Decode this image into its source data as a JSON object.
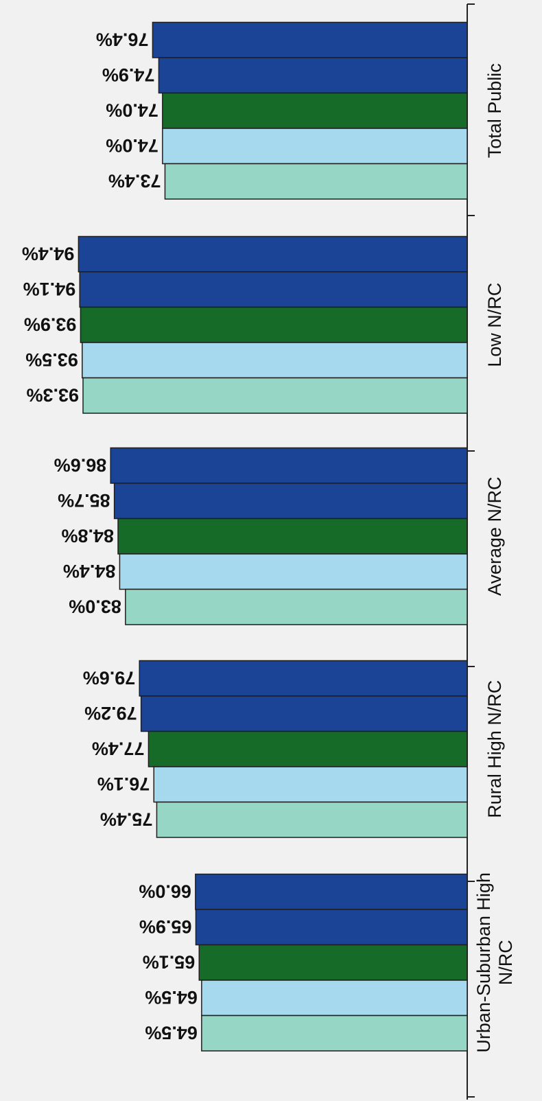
{
  "chart_data": {
    "type": "bar",
    "orientation": "horizontal",
    "rendered_rotation": "upside-down (rotated 180 degrees)",
    "categories": [
      "Total Public",
      "Low N/RC",
      "Average N/RC",
      "Rural High N/RC",
      "Urban-Suburban High N/RC"
    ],
    "series": [
      {
        "values": [
          76.4,
          94.4,
          86.6,
          79.6,
          66.0
        ],
        "color": "#1c4496"
      },
      {
        "values": [
          74.9,
          94.1,
          85.7,
          79.2,
          65.9
        ],
        "color": "#1c4496"
      },
      {
        "values": [
          74.0,
          93.9,
          84.8,
          77.4,
          65.1
        ],
        "color": "#156b27"
      },
      {
        "values": [
          74.0,
          93.5,
          84.4,
          76.1,
          64.5
        ],
        "color": "#a7d9ee"
      },
      {
        "values": [
          73.4,
          93.3,
          83.0,
          75.4,
          64.5
        ],
        "color": "#96d6c4"
      }
    ],
    "value_labels": [
      [
        "76.4%",
        "94.4%",
        "86.6%",
        "79.6%",
        "66.0%"
      ],
      [
        "74.9%",
        "94.1%",
        "85.7%",
        "79.2%",
        "65.9%"
      ],
      [
        "74.0%",
        "93.9%",
        "84.8%",
        "77.4%",
        "65.1%"
      ],
      [
        "74.0%",
        "93.5%",
        "84.4%",
        "76.1%",
        "64.5%"
      ],
      [
        "73.4%",
        "93.3%",
        "83.0%",
        "75.4%",
        "64.5%"
      ]
    ],
    "value_axis": {
      "visible": false
    },
    "grid": false,
    "legend": "none"
  }
}
